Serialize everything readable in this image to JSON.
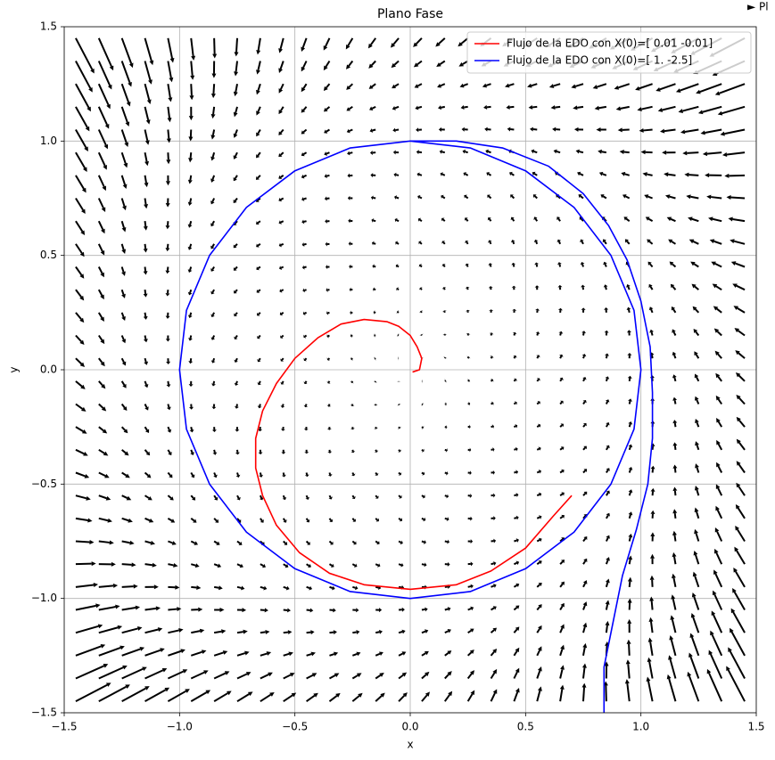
{
  "chart_data": {
    "type": "line",
    "title": "Plano Fase",
    "x_label": "x",
    "y_label": "y",
    "corner_text": "► Pl",
    "xlim": [
      -1.5,
      1.5
    ],
    "ylim": [
      -1.5,
      1.5
    ],
    "xticks": [
      {
        "value": -1.5,
        "label": "−1.5"
      },
      {
        "value": -1,
        "label": "−1.0"
      },
      {
        "value": -0.5,
        "label": "−0.5"
      },
      {
        "value": 0,
        "label": "0.0"
      },
      0.5,
      {
        "value": 1,
        "label": "1.0"
      },
      1.5
    ],
    "yticks": [
      {
        "value": -1.5,
        "label": "−1.5"
      },
      {
        "value": -1,
        "label": "−1.0"
      },
      {
        "value": -0.5,
        "label": "−0.5"
      },
      {
        "value": 0,
        "label": "0.0"
      },
      0.5,
      {
        "value": 1,
        "label": "1.0"
      },
      1.5
    ],
    "grid": true,
    "legend": "upper right",
    "series": [
      {
        "name": "Flujo de la EDO con X(0)=[ 0.01 -0.01]",
        "color": "#ff0000",
        "x": [
          0.01,
          0.04,
          0.05,
          0.03,
          0.0,
          -0.05,
          -0.1,
          -0.2,
          -0.3,
          -0.4,
          -0.5,
          -0.58,
          -0.64,
          -0.67,
          -0.67,
          -0.64,
          -0.58,
          -0.48,
          -0.35,
          -0.2,
          0.0,
          0.2,
          0.35,
          0.5,
          0.62,
          0.7
        ],
        "values": [
          -0.01,
          0.0,
          0.05,
          0.1,
          0.15,
          0.19,
          0.21,
          0.22,
          0.2,
          0.14,
          0.05,
          -0.06,
          -0.18,
          -0.3,
          -0.43,
          -0.55,
          -0.68,
          -0.8,
          -0.89,
          -0.94,
          -0.96,
          -0.94,
          -0.88,
          -0.78,
          -0.64,
          -0.55
        ]
      },
      {
        "name": "Flujo de la EDO con X(0)=[ 1.  -2.5]",
        "color": "#0000ff",
        "x": [
          0.84,
          0.84,
          0.87,
          0.92,
          0.98,
          1.03,
          1.05,
          1.05,
          1.04,
          1.0,
          0.94,
          0.86,
          0.75,
          0.6,
          0.4,
          0.2,
          0.0,
          -0.26,
          -0.5,
          -0.71,
          -0.87,
          -0.97,
          -1.0,
          -0.97,
          -0.87,
          -0.71,
          -0.5,
          -0.26,
          0.0,
          0.26,
          0.5,
          0.71,
          0.87,
          0.97,
          1.0,
          0.97,
          0.87,
          0.71,
          0.5,
          0.26,
          0.0
        ],
        "values": [
          -1.5,
          -1.3,
          -1.15,
          -0.9,
          -0.7,
          -0.5,
          -0.3,
          -0.1,
          0.1,
          0.3,
          0.48,
          0.63,
          0.77,
          0.89,
          0.97,
          1.0,
          1.0,
          0.97,
          0.87,
          0.71,
          0.5,
          0.26,
          0.0,
          -0.26,
          -0.5,
          -0.71,
          -0.87,
          -0.97,
          -1.0,
          -0.97,
          -0.87,
          -0.71,
          -0.5,
          -0.26,
          0.0,
          0.26,
          0.5,
          0.71,
          0.87,
          0.97,
          1.0
        ]
      }
    ]
  }
}
